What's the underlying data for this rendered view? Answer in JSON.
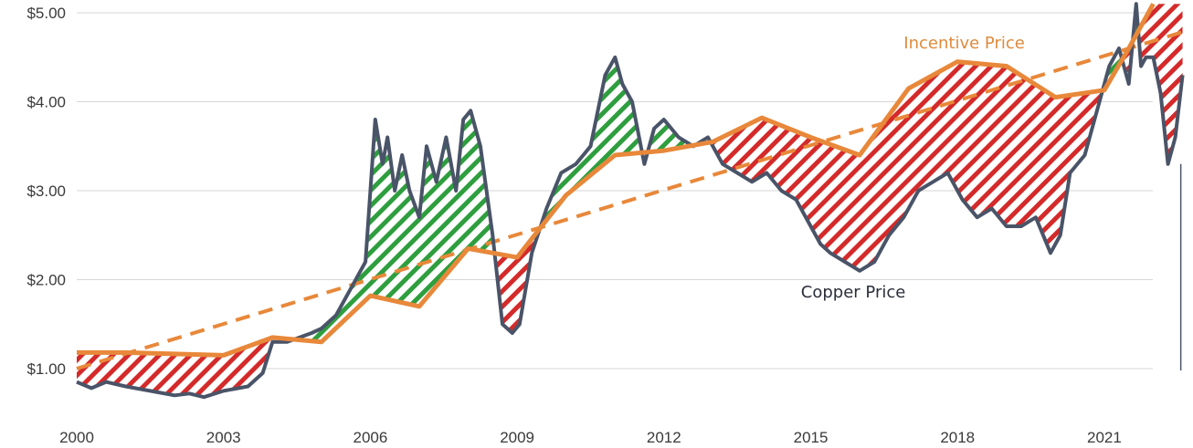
{
  "chart_data": {
    "type": "line",
    "ylim": [
      0.4,
      5.15
    ],
    "xlim": [
      2000,
      2022.7
    ],
    "y_ticks": [
      {
        "value": 1.0,
        "label": "$1.00"
      },
      {
        "value": 2.0,
        "label": "$2.00"
      },
      {
        "value": 3.0,
        "label": "$3.00"
      },
      {
        "value": 4.0,
        "label": "$4.00"
      },
      {
        "value": 5.0,
        "label": "$5.00"
      }
    ],
    "x_ticks": [
      {
        "value": 2000,
        "label": "2000"
      },
      {
        "value": 2003,
        "label": "2003"
      },
      {
        "value": 2006,
        "label": "2006"
      },
      {
        "value": 2009,
        "label": "2009"
      },
      {
        "value": 2012,
        "label": "2012"
      },
      {
        "value": 2015,
        "label": "2015"
      },
      {
        "value": 2018,
        "label": "2018"
      },
      {
        "value": 2021,
        "label": "2021"
      }
    ],
    "grid": "horizontal",
    "colors": {
      "copper": "#4a5468",
      "incentive": "#e8883a",
      "trend": "#e8883a",
      "above_incentive": "#2e9e3e",
      "below_incentive": "#d42a2a"
    },
    "annotations": [
      {
        "key": "incentive",
        "text": "Incentive Price",
        "x": 2016.9,
        "y": 4.6
      },
      {
        "key": "copper",
        "text": "Copper Price",
        "x": 2014.8,
        "y": 1.8
      }
    ],
    "series": [
      {
        "key": "copper",
        "x": [
          2000.0,
          2000.3,
          2000.6,
          2001.0,
          2001.5,
          2002.0,
          2002.3,
          2002.6,
          2003.0,
          2003.5,
          2003.8,
          2004.0,
          2004.3,
          2004.8,
          2005.0,
          2005.3,
          2005.6,
          2005.9,
          2006.1,
          2006.25,
          2006.35,
          2006.5,
          2006.65,
          2006.8,
          2007.0,
          2007.15,
          2007.35,
          2007.55,
          2007.75,
          2007.9,
          2008.05,
          2008.25,
          2008.5,
          2008.7,
          2008.9,
          2009.05,
          2009.3,
          2009.6,
          2009.9,
          2010.2,
          2010.5,
          2010.8,
          2011.0,
          2011.15,
          2011.35,
          2011.6,
          2011.8,
          2012.0,
          2012.3,
          2012.6,
          2012.9,
          2013.2,
          2013.5,
          2013.8,
          2014.1,
          2014.4,
          2014.7,
          2015.0,
          2015.2,
          2015.4,
          2015.7,
          2016.0,
          2016.3,
          2016.6,
          2016.9,
          2017.2,
          2017.5,
          2017.8,
          2018.1,
          2018.4,
          2018.7,
          2019.0,
          2019.3,
          2019.6,
          2019.9,
          2020.1,
          2020.3,
          2020.6,
          2020.9,
          2021.1,
          2021.3,
          2021.5,
          2021.65,
          2021.75,
          2021.85,
          2022.0,
          2022.15,
          2022.3,
          2022.45,
          2022.6
        ],
        "y": [
          0.85,
          0.78,
          0.85,
          0.8,
          0.75,
          0.7,
          0.72,
          0.68,
          0.75,
          0.8,
          0.95,
          1.3,
          1.3,
          1.4,
          1.45,
          1.6,
          1.9,
          2.2,
          3.8,
          3.3,
          3.6,
          3.0,
          3.4,
          3.0,
          2.7,
          3.5,
          3.1,
          3.6,
          3.0,
          3.8,
          3.9,
          3.5,
          2.5,
          1.5,
          1.4,
          1.5,
          2.3,
          2.8,
          3.2,
          3.3,
          3.5,
          4.3,
          4.5,
          4.2,
          4.0,
          3.3,
          3.7,
          3.8,
          3.6,
          3.5,
          3.6,
          3.3,
          3.2,
          3.1,
          3.2,
          3.0,
          2.9,
          2.6,
          2.4,
          2.3,
          2.2,
          2.1,
          2.2,
          2.5,
          2.7,
          3.0,
          3.1,
          3.2,
          2.9,
          2.7,
          2.8,
          2.6,
          2.6,
          2.7,
          2.3,
          2.5,
          3.2,
          3.4,
          4.0,
          4.4,
          4.6,
          4.2,
          5.1,
          4.4,
          4.5,
          4.5,
          4.1,
          3.3,
          3.6,
          4.3
        ]
      },
      {
        "key": "incentive",
        "x": [
          2000.0,
          2001.0,
          2003.0,
          2004.0,
          2005.0,
          2006.0,
          2007.0,
          2008.0,
          2009.0,
          2010.0,
          2011.0,
          2012.0,
          2013.0,
          2014.0,
          2015.0,
          2016.0,
          2017.0,
          2018.0,
          2019.0,
          2020.0,
          2021.0,
          2021.5,
          2022.0
        ],
        "y": [
          1.18,
          1.18,
          1.15,
          1.35,
          1.3,
          1.82,
          1.7,
          2.35,
          2.25,
          2.95,
          3.4,
          3.45,
          3.55,
          3.82,
          3.6,
          3.4,
          4.15,
          4.45,
          4.4,
          4.05,
          4.13,
          4.6,
          5.1
        ]
      },
      {
        "key": "trend",
        "x": [
          2000.0,
          2022.7
        ],
        "y": [
          1.0,
          4.8
        ]
      }
    ]
  }
}
